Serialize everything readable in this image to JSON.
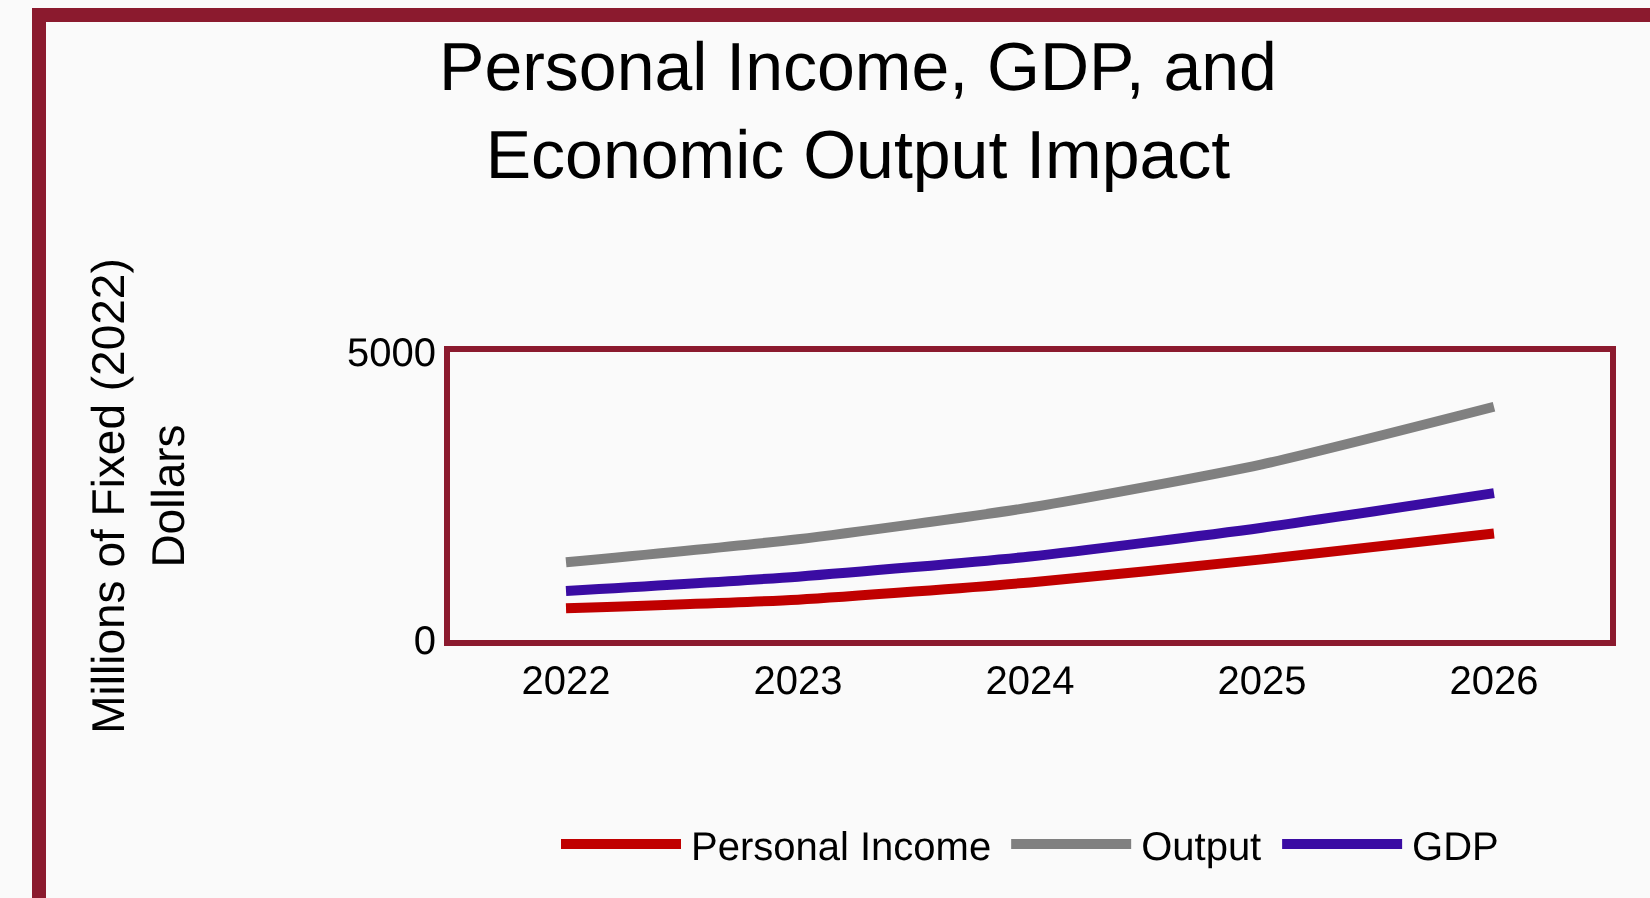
{
  "chart_data": {
    "type": "line",
    "title": "Personal Income, GDP, and Economic Output Impact",
    "ylabel": "Millions of Fixed (2022) Dollars",
    "categories": [
      "2022",
      "2023",
      "2024",
      "2025",
      "2026"
    ],
    "series": [
      {
        "name": "Personal Income",
        "color": "#c00000",
        "values": [
          550,
          700,
          1000,
          1400,
          1850
        ]
      },
      {
        "name": "Output",
        "color": "#808080",
        "values": [
          1350,
          1750,
          2300,
          3050,
          4050
        ]
      },
      {
        "name": "GDP",
        "color": "#3a0ca3",
        "values": [
          850,
          1100,
          1450,
          1950,
          2550
        ]
      }
    ],
    "ylim": [
      0,
      5000
    ],
    "yticks": [
      0,
      5000
    ],
    "grid": false,
    "legend": "bottom",
    "marker": "none",
    "line_style": "solid"
  }
}
